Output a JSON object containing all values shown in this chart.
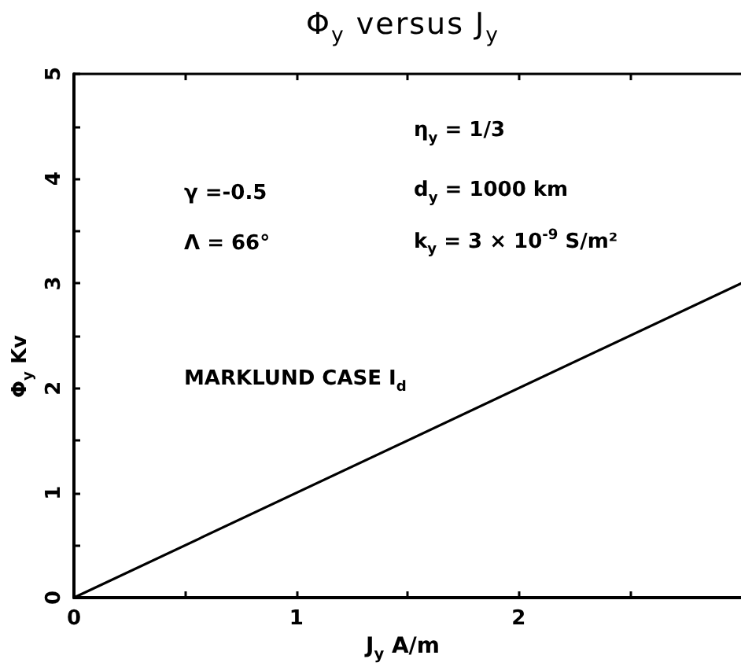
{
  "chart_data": {
    "type": "line",
    "title": "Φ$_{y}$ versus J$_{y}$",
    "xlabel": "J$_{y}$ A/m",
    "ylabel": "Φ$_{y}$ Kv",
    "x": [
      0,
      3
    ],
    "series": [
      {
        "color": "#000000",
        "values": [
          0,
          3
        ]
      }
    ],
    "xlim": [
      0,
      3
    ],
    "xticks": [
      0,
      {
        "value": 0.5,
        "label": null
      },
      1,
      {
        "value": 1.5,
        "label": null
      },
      2,
      {
        "value": 2.5,
        "label": null
      }
    ],
    "ylim": [
      0,
      5
    ],
    "yticks": [
      0,
      {
        "value": 0.5,
        "label": null
      },
      1,
      {
        "value": 1.5,
        "label": null
      },
      2,
      {
        "value": 2.5,
        "label": null
      },
      3,
      {
        "value": 3.5,
        "label": null
      },
      4,
      {
        "value": 4.5,
        "label": null
      },
      5
    ],
    "grid": false,
    "marker": "none",
    "line_style": "solid",
    "annotations": [
      "η$_{y}$ = 1/3",
      "γ =-0.5",
      "d$_{y}$ = 1000 km",
      "Λ = 66°",
      "k$_{y}$ = 3 × 10$^{-9}$ S/m²",
      "MARKLUND CASE I$_{d}$"
    ]
  }
}
